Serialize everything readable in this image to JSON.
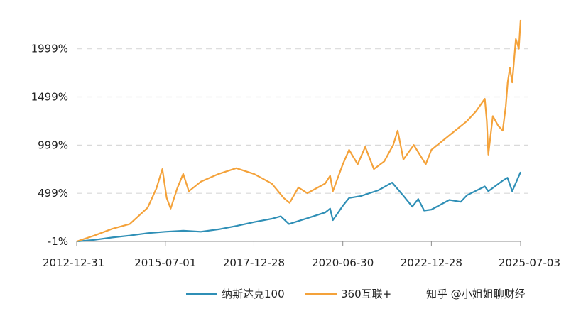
{
  "chart_data": {
    "type": "line",
    "title": "",
    "xlabel": "",
    "ylabel": "",
    "ylim": [
      -1,
      2299
    ],
    "xlim": [
      "2012-12-31",
      "2025-07-03"
    ],
    "grid": true,
    "legend_position": "bottom-right",
    "y_ticks": [
      "-1%",
      "499%",
      "999%",
      "1499%",
      "1999%"
    ],
    "y_tick_values": [
      -1,
      499,
      999,
      1499,
      1999
    ],
    "x_ticks": [
      "2012-12-31",
      "2015-07-01",
      "2017-12-28",
      "2020-06-30",
      "2022-12-28",
      "2025-07-03"
    ],
    "series": [
      {
        "name": "纳斯达克100",
        "color": "#2f8fb6",
        "points": [
          [
            "2012-12-31",
            -1
          ],
          [
            "2013-06-30",
            15
          ],
          [
            "2013-12-31",
            40
          ],
          [
            "2014-06-30",
            60
          ],
          [
            "2014-12-31",
            85
          ],
          [
            "2015-06-30",
            100
          ],
          [
            "2015-12-31",
            110
          ],
          [
            "2016-06-30",
            100
          ],
          [
            "2016-12-31",
            125
          ],
          [
            "2017-06-30",
            160
          ],
          [
            "2017-12-31",
            200
          ],
          [
            "2018-06-30",
            235
          ],
          [
            "2018-09-30",
            260
          ],
          [
            "2018-12-24",
            180
          ],
          [
            "2019-06-30",
            240
          ],
          [
            "2019-12-31",
            300
          ],
          [
            "2020-02-20",
            340
          ],
          [
            "2020-03-20",
            220
          ],
          [
            "2020-06-30",
            370
          ],
          [
            "2020-09-02",
            450
          ],
          [
            "2020-12-31",
            470
          ],
          [
            "2021-06-30",
            530
          ],
          [
            "2021-11-19",
            610
          ],
          [
            "2022-03-10",
            480
          ],
          [
            "2022-06-15",
            360
          ],
          [
            "2022-08-15",
            440
          ],
          [
            "2022-10-15",
            320
          ],
          [
            "2022-12-28",
            330
          ],
          [
            "2023-06-30",
            430
          ],
          [
            "2023-10-26",
            410
          ],
          [
            "2023-12-31",
            480
          ],
          [
            "2024-06-30",
            570
          ],
          [
            "2024-08-05",
            520
          ],
          [
            "2024-12-31",
            630
          ],
          [
            "2025-02-18",
            660
          ],
          [
            "2025-04-08",
            520
          ],
          [
            "2025-05-30",
            640
          ],
          [
            "2025-07-03",
            720
          ]
        ]
      },
      {
        "name": "360互联+",
        "color": "#f4a23a",
        "points": [
          [
            "2012-12-31",
            -1
          ],
          [
            "2013-06-30",
            60
          ],
          [
            "2013-12-31",
            130
          ],
          [
            "2014-06-30",
            180
          ],
          [
            "2014-12-31",
            350
          ],
          [
            "2015-03-31",
            550
          ],
          [
            "2015-05-31",
            750
          ],
          [
            "2015-07-15",
            450
          ],
          [
            "2015-08-25",
            340
          ],
          [
            "2015-10-31",
            550
          ],
          [
            "2015-12-31",
            700
          ],
          [
            "2016-02-28",
            520
          ],
          [
            "2016-06-30",
            620
          ],
          [
            "2016-12-31",
            700
          ],
          [
            "2017-06-30",
            760
          ],
          [
            "2017-12-28",
            700
          ],
          [
            "2018-03-31",
            650
          ],
          [
            "2018-06-30",
            600
          ],
          [
            "2018-10-31",
            450
          ],
          [
            "2018-12-31",
            400
          ],
          [
            "2019-03-31",
            560
          ],
          [
            "2019-06-30",
            500
          ],
          [
            "2019-12-31",
            600
          ],
          [
            "2020-02-20",
            680
          ],
          [
            "2020-03-20",
            520
          ],
          [
            "2020-06-30",
            800
          ],
          [
            "2020-09-02",
            950
          ],
          [
            "2020-11-30",
            800
          ],
          [
            "2021-02-15",
            980
          ],
          [
            "2021-05-15",
            750
          ],
          [
            "2021-08-30",
            830
          ],
          [
            "2021-11-30",
            1000
          ],
          [
            "2022-01-15",
            1150
          ],
          [
            "2022-03-15",
            850
          ],
          [
            "2022-06-30",
            1000
          ],
          [
            "2022-10-31",
            800
          ],
          [
            "2022-12-28",
            950
          ],
          [
            "2023-06-30",
            1100
          ],
          [
            "2023-12-31",
            1250
          ],
          [
            "2024-03-31",
            1350
          ],
          [
            "2024-06-30",
            1480
          ],
          [
            "2024-07-20",
            1250
          ],
          [
            "2024-08-05",
            900
          ],
          [
            "2024-09-20",
            1300
          ],
          [
            "2024-11-15",
            1200
          ],
          [
            "2024-12-31",
            1150
          ],
          [
            "2025-01-31",
            1400
          ],
          [
            "2025-02-20",
            1650
          ],
          [
            "2025-03-15",
            1800
          ],
          [
            "2025-04-08",
            1650
          ],
          [
            "2025-05-15",
            2100
          ],
          [
            "2025-06-15",
            2000
          ],
          [
            "2025-07-03",
            2299
          ]
        ]
      }
    ]
  },
  "watermark": "知乎 @小姐姐聊财经"
}
